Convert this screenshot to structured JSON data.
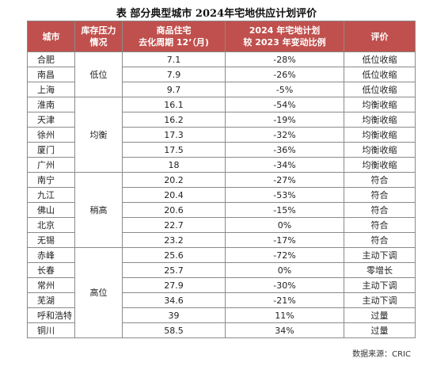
{
  "title": "表 部分典型城市 2024年宅地供应计划评价",
  "headers": {
    "city": "城市",
    "pressure_line1": "库存压力",
    "pressure_line2": "情况",
    "period_line1": "商品住宅",
    "period_line2": "去化周期 12’（月)",
    "change_line1": "2024 年宅地计划",
    "change_line2": "较 2023 年变动比例",
    "eval": "评价"
  },
  "groups": [
    {
      "pressure": "低位",
      "rows": [
        {
          "city": "合肥",
          "period": "7.1",
          "change": "-28%",
          "eval": "低位收缩"
        },
        {
          "city": "南昌",
          "period": "7.9",
          "change": "-26%",
          "eval": "低位收缩"
        },
        {
          "city": "上海",
          "period": "9.7",
          "change": "-5%",
          "eval": "低位收缩"
        }
      ]
    },
    {
      "pressure": "均衡",
      "rows": [
        {
          "city": "淮南",
          "period": "16.1",
          "change": "-54%",
          "eval": "均衡收缩"
        },
        {
          "city": "天津",
          "period": "16.2",
          "change": "-19%",
          "eval": "均衡收缩"
        },
        {
          "city": "徐州",
          "period": "17.3",
          "change": "-32%",
          "eval": "均衡收缩"
        },
        {
          "city": "厦门",
          "period": "17.5",
          "change": "-36%",
          "eval": "均衡收缩"
        },
        {
          "city": "广州",
          "period": "18",
          "change": "-34%",
          "eval": "均衡收缩"
        }
      ]
    },
    {
      "pressure": "稍高",
      "rows": [
        {
          "city": "南宁",
          "period": "20.2",
          "change": "-27%",
          "eval": "符合"
        },
        {
          "city": "九江",
          "period": "20.4",
          "change": "-53%",
          "eval": "符合"
        },
        {
          "city": "佛山",
          "period": "20.6",
          "change": "-15%",
          "eval": "符合"
        },
        {
          "city": "北京",
          "period": "22.7",
          "change": "0%",
          "eval": "符合"
        },
        {
          "city": "无锡",
          "period": "23.2",
          "change": "-17%",
          "eval": "符合"
        }
      ]
    },
    {
      "pressure": "高位",
      "rows": [
        {
          "city": "赤峰",
          "period": "25.6",
          "change": "-72%",
          "eval": "主动下调"
        },
        {
          "city": "长春",
          "period": "25.7",
          "change": "0%",
          "eval": "零增长"
        },
        {
          "city": "常州",
          "period": "27.9",
          "change": "-30%",
          "eval": "主动下调"
        },
        {
          "city": "芜湖",
          "period": "34.6",
          "change": "-21%",
          "eval": "主动下调"
        },
        {
          "city": "呼和浩特",
          "period": "39",
          "change": "11%",
          "eval": "过量"
        },
        {
          "city": "铜川",
          "period": "58.5",
          "change": "34%",
          "eval": "过量"
        }
      ]
    }
  ],
  "source": "数据来源：CRIC",
  "colors": {
    "header_bg": "#c0504d",
    "header_text": "#ffffff"
  }
}
